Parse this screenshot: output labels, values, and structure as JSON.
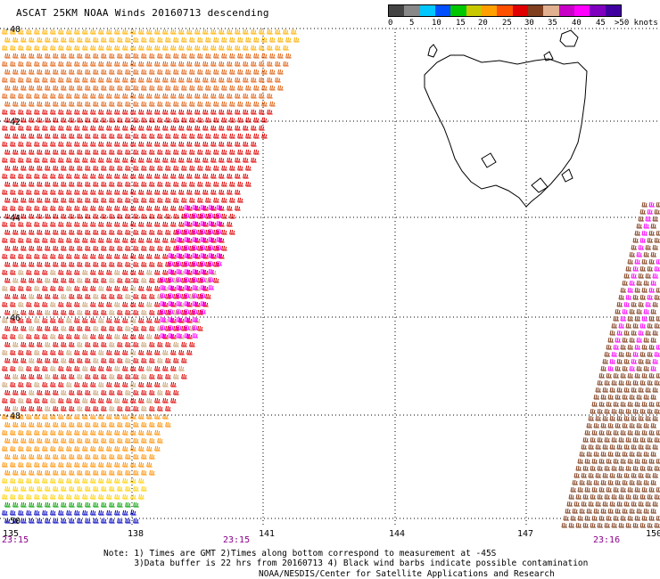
{
  "title": "ASCAT 25KM NOAA Winds 20160713 descending",
  "scale": {
    "colors": [
      "#444444",
      "#888888",
      "#00c8ff",
      "#0050ff",
      "#00c800",
      "#c8c800",
      "#ffa000",
      "#ff5000",
      "#e00000",
      "#804020",
      "#e0b090",
      "#c800c8",
      "#ff00ff",
      "#8000c0",
      "#4000a0"
    ],
    "labels": [
      "0",
      "5",
      "10",
      "15",
      "20",
      "25",
      "30",
      "35",
      "40",
      "45",
      ">50 knots"
    ]
  },
  "lat_labels": [
    "-40",
    "-42",
    "-44",
    "-46",
    "-48",
    "-50"
  ],
  "lon_labels": [
    "135",
    "138",
    "141",
    "144",
    "147",
    "150"
  ],
  "time_labels": [
    "23:15",
    "23:15",
    "23:16"
  ],
  "notes": {
    "line1": "Note: 1) Times are GMT 2)Times along bottom correspond to measurement at -45S",
    "line2": "      3)Data buffer is 22 hrs from 20160713 4) Black wind barbs indicate possible contamination"
  },
  "credit": "NOAA/NESDIS/Center for Satellite Applications and Research"
}
